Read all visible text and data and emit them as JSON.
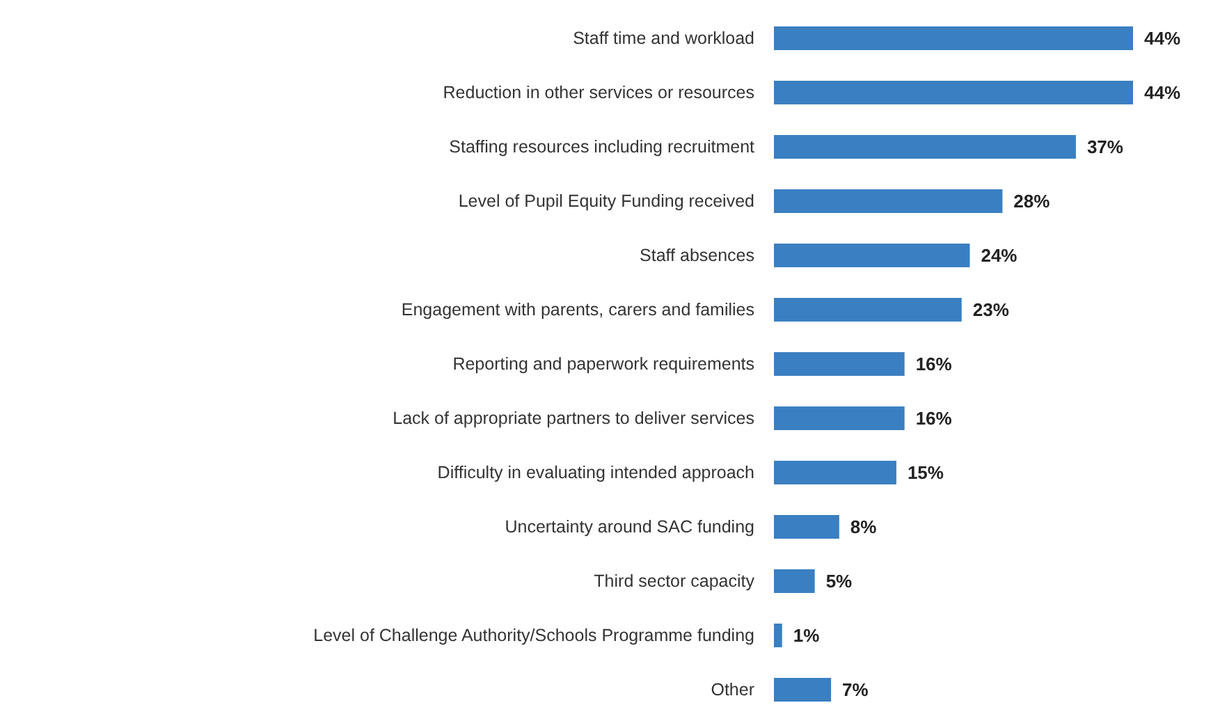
{
  "chart_data": {
    "type": "bar",
    "orientation": "horizontal",
    "categories": [
      "Staff time and workload",
      "Reduction in other services or resources",
      "Staffing resources including recruitment",
      "Level of Pupil Equity Funding received",
      "Staff absences",
      "Engagement with parents, carers and families",
      "Reporting and paperwork requirements",
      "Lack of appropriate partners to deliver services",
      "Difficulty in evaluating intended approach",
      "Uncertainty around SAC funding",
      "Third sector capacity",
      "Level of Challenge Authority/Schools Programme funding",
      "Other"
    ],
    "values": [
      44,
      44,
      37,
      28,
      24,
      23,
      16,
      16,
      15,
      8,
      5,
      1,
      7
    ],
    "value_labels": [
      "44%",
      "44%",
      "37%",
      "28%",
      "24%",
      "23%",
      "16%",
      "16%",
      "15%",
      "8%",
      "5%",
      "1%",
      "7%"
    ],
    "color": "#3a7fc1"
  }
}
